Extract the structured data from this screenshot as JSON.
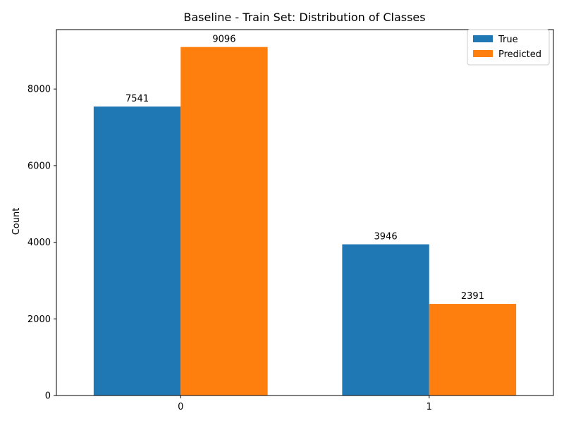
{
  "chart_data": {
    "type": "bar",
    "title": "Baseline - Train Set: Distribution of Classes",
    "xlabel": "",
    "ylabel": "Count",
    "categories": [
      "0",
      "1"
    ],
    "series": [
      {
        "name": "True",
        "values": [
          7541,
          3946
        ],
        "color": "#1f77b4"
      },
      {
        "name": "Predicted",
        "values": [
          9096,
          2391
        ],
        "color": "#ff7f0e"
      }
    ],
    "ylim": [
      0,
      9550
    ],
    "yticks": [
      0,
      2000,
      4000,
      6000,
      8000
    ],
    "ytick_labels": [
      "0",
      "2000",
      "4000",
      "6000",
      "8000"
    ],
    "grid": false,
    "legend_position": "top-right"
  }
}
